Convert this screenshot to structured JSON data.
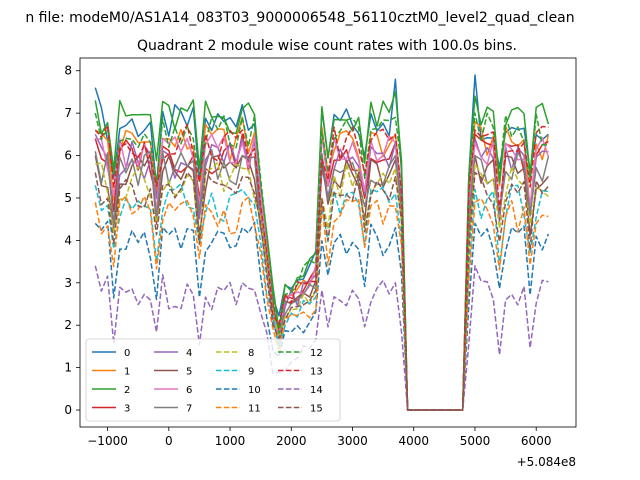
{
  "figure": {
    "suptitle": "n file: modeM0/AS1A14_083T03_9000006548_56110cztM0_level2_quad_clean",
    "title": "Quadrant 2 module wise count rates with 100.0s bins.",
    "offset_label": "+5.084e8"
  },
  "chart_data": {
    "type": "line",
    "title": "Quadrant 2 module wise count rates with 100.0s bins.",
    "xlabel": "",
    "ylabel": "",
    "x_offset": "+5.084e8",
    "xlim": [
      -1450,
      6650
    ],
    "ylim": [
      -0.4,
      8.3
    ],
    "xticks": [
      -1000,
      0,
      1000,
      2000,
      3000,
      4000,
      5000,
      6000
    ],
    "xtick_labels": [
      "−1000",
      "0",
      "1000",
      "2000",
      "3000",
      "4000",
      "5000",
      "6000"
    ],
    "yticks": [
      0,
      1,
      2,
      3,
      4,
      5,
      6,
      7,
      8
    ],
    "ytick_labels": [
      "0",
      "1",
      "2",
      "3",
      "4",
      "5",
      "6",
      "7",
      "8"
    ],
    "grid": false,
    "legend": {
      "position": "lower-left",
      "columns": 4
    },
    "series": [
      {
        "name": "0",
        "color": "#1f77b4",
        "dash": false,
        "level": 6.75,
        "peaks": [
          7.6,
          7.2,
          7.8,
          7.9
        ]
      },
      {
        "name": "1",
        "color": "#ff7f0e",
        "dash": false,
        "level": 6.3,
        "peaks": [
          6.6,
          6.9,
          6.5,
          6.8
        ]
      },
      {
        "name": "2",
        "color": "#2ca02c",
        "dash": false,
        "level": 6.9,
        "peaks": [
          7.3,
          7.1,
          7.5,
          7.4
        ]
      },
      {
        "name": "3",
        "color": "#d62728",
        "dash": false,
        "level": 6.0,
        "peaks": [
          6.4,
          6.5,
          6.3,
          6.5
        ]
      },
      {
        "name": "4",
        "color": "#9467bd",
        "dash": false,
        "level": 5.9,
        "peaks": [
          6.5,
          6.4,
          6.3,
          6.4
        ]
      },
      {
        "name": "5",
        "color": "#8c564b",
        "dash": false,
        "level": 5.6,
        "peaks": [
          6.0,
          6.0,
          5.9,
          6.0
        ]
      },
      {
        "name": "6",
        "color": "#e377c2",
        "dash": false,
        "level": 6.1,
        "peaks": [
          6.4,
          6.3,
          6.3,
          6.3
        ]
      },
      {
        "name": "7",
        "color": "#7f7f7f",
        "dash": false,
        "level": 5.7,
        "peaks": [
          6.1,
          6.0,
          6.0,
          6.0
        ]
      },
      {
        "name": "8",
        "color": "#bcbd22",
        "dash": true,
        "level": 5.4,
        "peaks": [
          5.8,
          5.7,
          5.7,
          5.8
        ]
      },
      {
        "name": "9",
        "color": "#17becf",
        "dash": true,
        "level": 4.9,
        "peaks": [
          5.3,
          5.2,
          5.1,
          5.2
        ]
      },
      {
        "name": "10",
        "color": "#1f77b4",
        "dash": true,
        "level": 4.0,
        "peaks": [
          4.4,
          4.3,
          4.3,
          4.4
        ]
      },
      {
        "name": "11",
        "color": "#ff7f0e",
        "dash": true,
        "level": 4.6,
        "peaks": [
          4.9,
          4.9,
          4.8,
          4.9
        ]
      },
      {
        "name": "12",
        "color": "#2ca02c",
        "dash": true,
        "level": 6.6,
        "peaks": [
          7.0,
          6.9,
          6.9,
          7.0
        ]
      },
      {
        "name": "13",
        "color": "#d62728",
        "dash": true,
        "level": 6.3,
        "peaks": [
          6.6,
          6.6,
          6.5,
          6.6
        ]
      },
      {
        "name": "14",
        "color": "#9467bd",
        "dash": true,
        "level": 2.8,
        "peaks": [
          3.4,
          3.0,
          3.0,
          3.4
        ]
      },
      {
        "name": "15",
        "color": "#8c564b",
        "dash": true,
        "level": 5.2,
        "peaks": [
          5.6,
          5.5,
          5.5,
          5.6
        ]
      }
    ]
  }
}
